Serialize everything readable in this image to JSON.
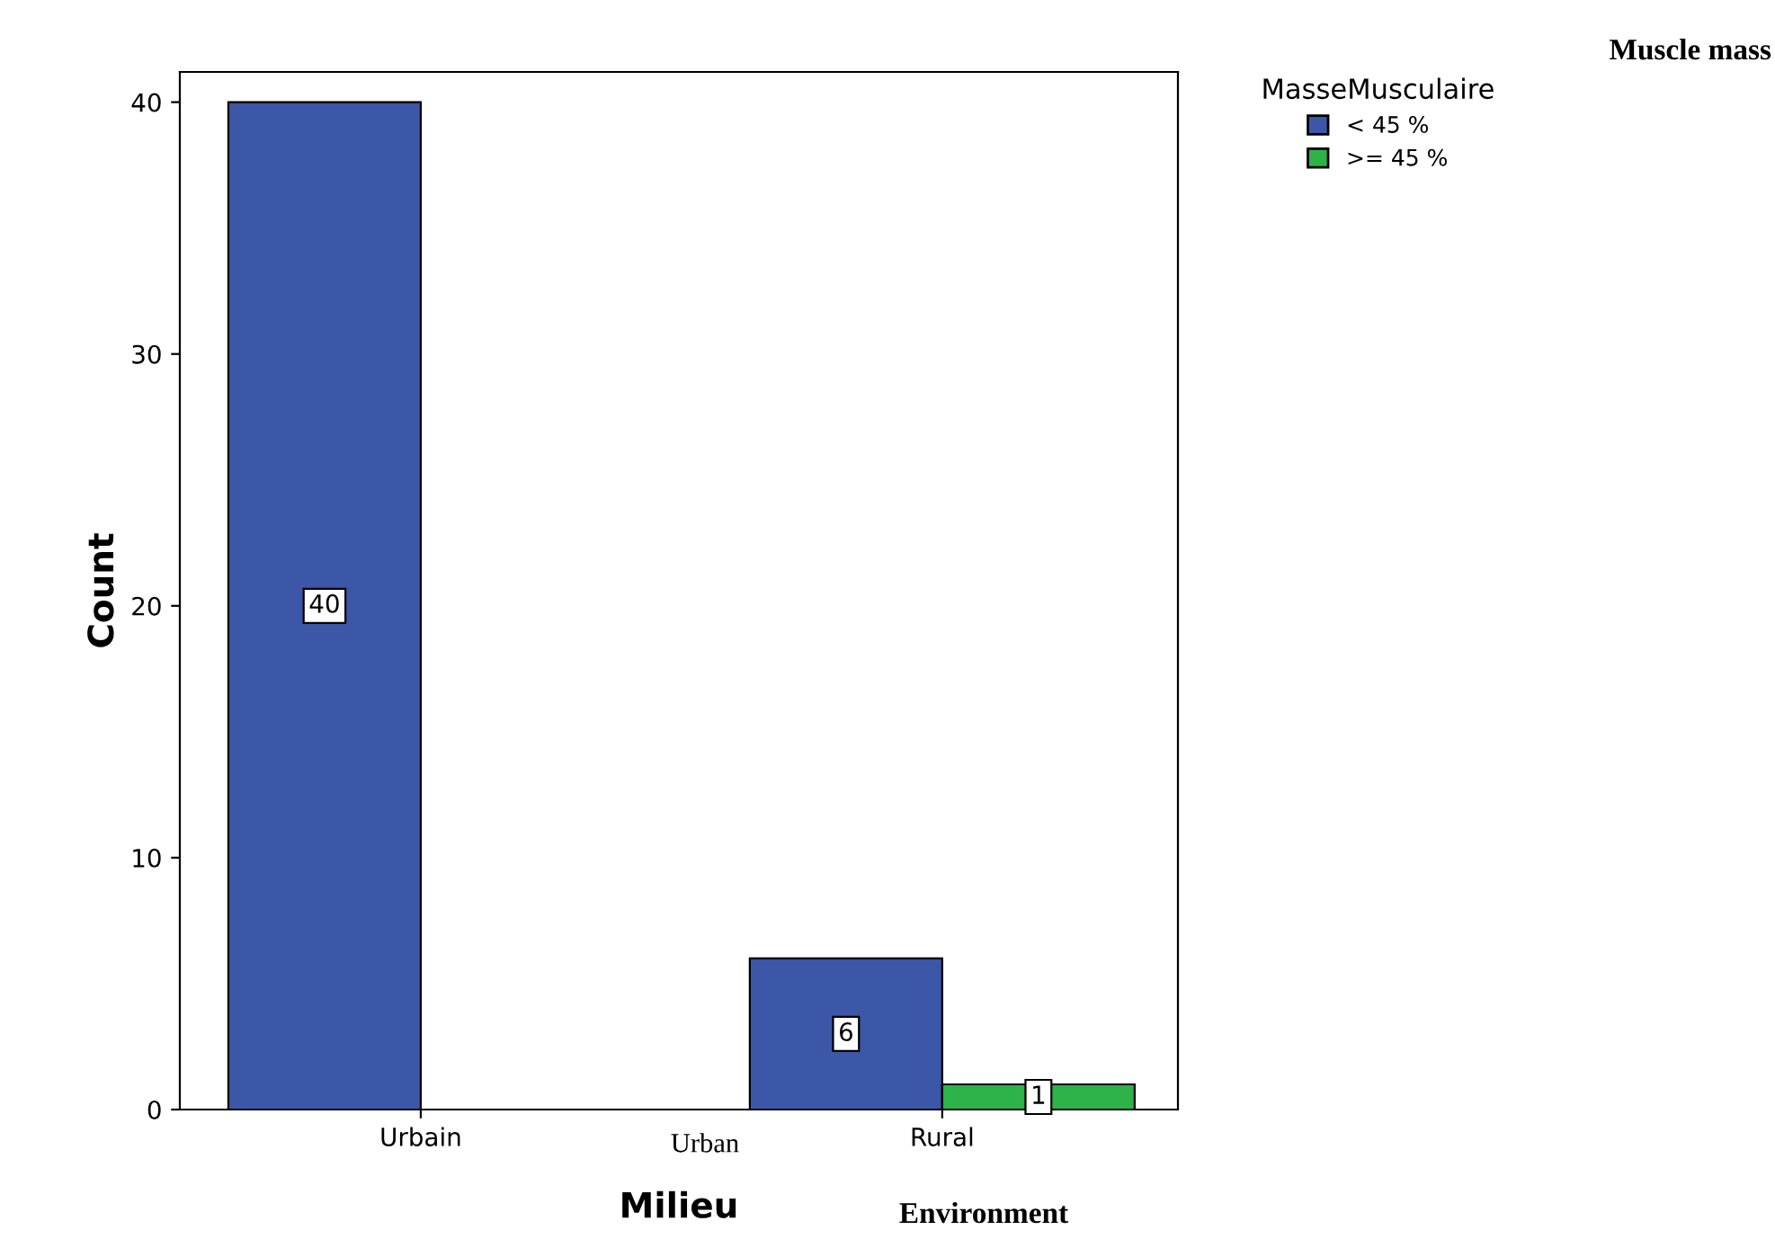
{
  "chart_data": {
    "type": "bar",
    "categories": [
      "Urbain",
      "Rural"
    ],
    "series": [
      {
        "name": "< 45 %",
        "color": "#3c56a8",
        "values": [
          40,
          6
        ],
        "value_labels": [
          "40",
          "6"
        ]
      },
      {
        "name": ">= 45 %",
        "color": "#2db34a",
        "values": [
          0,
          1
        ],
        "value_labels": [
          null,
          "1"
        ]
      }
    ],
    "xlabel": "Milieu",
    "ylabel": "Count",
    "legend_title": "MasseMusculaire",
    "legend": "top right",
    "ylim": [
      0,
      41.2
    ],
    "yticks": [
      0,
      10,
      20,
      30,
      40
    ],
    "grid": false,
    "annotations": [
      "Urban",
      "Environment",
      "Muscle mass"
    ]
  }
}
